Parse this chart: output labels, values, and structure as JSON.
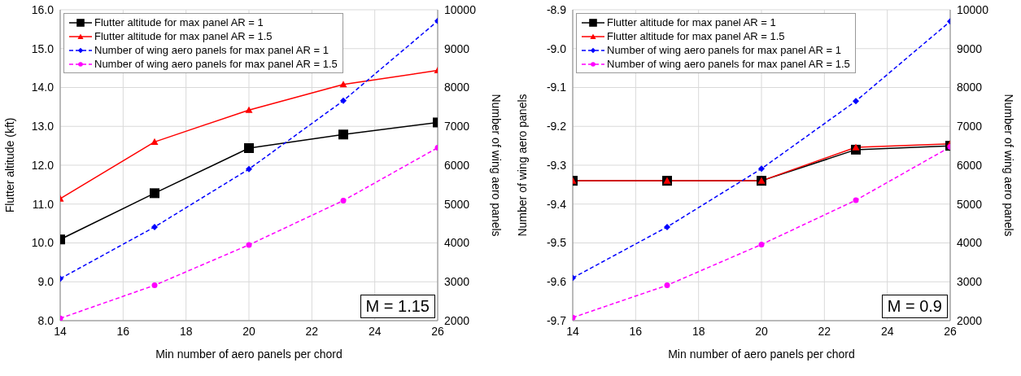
{
  "chart_data": [
    {
      "type": "line",
      "x": [
        14,
        17,
        20,
        23,
        26
      ],
      "xlabel": "Min number of aero panels per chord",
      "ylabel": "Flutter altitude (kft)",
      "y2label": "Number of wing aero panels",
      "xlim": [
        14,
        26
      ],
      "xticks": [
        14,
        16,
        18,
        20,
        22,
        24,
        26
      ],
      "ylim": [
        8,
        16
      ],
      "yticks": [
        {
          "value": 8,
          "label": "8.0"
        },
        {
          "value": 9,
          "label": "9.0"
        },
        {
          "value": 10,
          "label": "10.0"
        },
        {
          "value": 11,
          "label": "11.0"
        },
        {
          "value": 12,
          "label": "12.0"
        },
        {
          "value": 13,
          "label": "13.0"
        },
        {
          "value": 14,
          "label": "14.0"
        },
        {
          "value": 15,
          "label": "15.0"
        },
        {
          "value": 16,
          "label": "16.0"
        }
      ],
      "y2lim": [
        2000,
        10000
      ],
      "y2ticks": [
        2000,
        3000,
        4000,
        5000,
        6000,
        7000,
        8000,
        9000,
        10000
      ],
      "grid": true,
      "legend": "top left",
      "annotations": [
        "M = 1.15"
      ],
      "series": [
        {
          "name": "Flutter altitude for max panel AR = 1",
          "color": "#000000",
          "values": [
            10.09,
            11.28,
            12.44,
            12.79,
            13.1
          ],
          "marker": "square",
          "line_style": "solid"
        },
        {
          "name": "Flutter altitude for max panel AR = 1.5",
          "color": "#ff0000",
          "values": [
            11.14,
            12.6,
            13.42,
            14.08,
            14.44
          ],
          "marker": "triangle",
          "line_style": "solid"
        },
        {
          "name": "Number of wing aero panels for max panel AR = 1",
          "color": "#0000ff",
          "values": [
            3080,
            4410,
            5900,
            7660,
            9710
          ],
          "marker": "diamond",
          "line_style": "dashed",
          "axis": "y2"
        },
        {
          "name": "Number of wing aero panels for max panel AR = 1.5",
          "color": "#ff00ff",
          "values": [
            2060,
            2910,
            3950,
            5090,
            6450
          ],
          "marker": "circle",
          "line_style": "dashed",
          "axis": "y2"
        }
      ]
    },
    {
      "type": "line",
      "x": [
        14,
        17,
        20,
        23,
        26
      ],
      "xlabel": "Min number of aero panels per chord",
      "ylabel": "Number of wing aero panels",
      "y2label": "Number of wing aero panels",
      "xlim": [
        14,
        26
      ],
      "xticks": [
        14,
        16,
        18,
        20,
        22,
        24,
        26
      ],
      "ylim": [
        -9.7,
        -8.9
      ],
      "yticks": [
        -9.7,
        -9.6,
        -9.5,
        -9.4,
        -9.3,
        -9.2,
        -9.1,
        {
          "value": -9,
          "label": "-9.0"
        },
        -8.9
      ],
      "y2lim": [
        2000,
        10000
      ],
      "y2ticks": [
        2000,
        3000,
        4000,
        5000,
        6000,
        7000,
        8000,
        9000,
        10000
      ],
      "grid": true,
      "legend": "top left",
      "annotations": [
        "M = 0.9"
      ],
      "series": [
        {
          "name": "Flutter altitude for max panel AR = 1",
          "color": "#000000",
          "values": [
            -9.34,
            -9.34,
            -9.34,
            -9.26,
            -9.25
          ],
          "marker": "square",
          "line_style": "solid"
        },
        {
          "name": "Flutter altitude for max panel AR = 1.5",
          "color": "#ff0000",
          "values": [
            -9.34,
            -9.34,
            -9.34,
            -9.254,
            -9.245
          ],
          "marker": "triangle",
          "line_style": "solid"
        },
        {
          "name": "Number of wing aero panels for max panel AR = 1",
          "color": "#0000ff",
          "values": [
            3100,
            4410,
            5910,
            7650,
            9700
          ],
          "marker": "diamond",
          "line_style": "dashed",
          "axis": "y2"
        },
        {
          "name": "Number of wing aero panels for max panel AR = 1.5",
          "color": "#ff00ff",
          "values": [
            2080,
            2910,
            3960,
            5100,
            6470
          ],
          "marker": "circle",
          "line_style": "dashed",
          "axis": "y2"
        }
      ]
    }
  ]
}
